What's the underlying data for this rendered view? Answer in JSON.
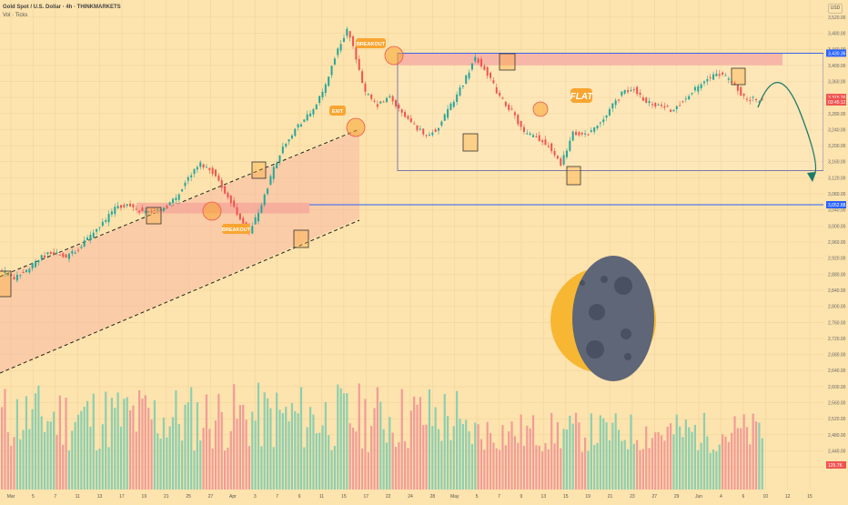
{
  "header": {
    "symbol": "Gold Spot / U.S. Dollar · 4h · THINKMARKETS",
    "volume": "Vol · Ticks"
  },
  "currency": "USD",
  "colors": {
    "background": "#fde3ad",
    "up": "#26a69a",
    "down": "#ef5350",
    "vol_up": "#8ccfb0",
    "vol_down": "#f19c98",
    "channel_fill": "#f7b9a2",
    "zone_fill": "#f4a49a",
    "level_line": "#2962ff",
    "marker": "#f8a531",
    "curve": "#1b7a6a"
  },
  "annotations": {
    "breakout_1": "BREAKOUT",
    "breakout_2": "BREAKOUT",
    "exit": "EXIT",
    "flat": "FLAT"
  },
  "chart_data": {
    "type": "candlestick",
    "y_axis_ticks": [
      "3,520.00",
      "3,480.00",
      "3,440.00",
      "3,400.00",
      "3,360.00",
      "3,320.00",
      "3,280.00",
      "3,240.00",
      "3,200.00",
      "3,160.00",
      "3,120.00",
      "3,080.00",
      "3,040.00",
      "3,000.00",
      "2,960.00",
      "2,920.00",
      "2,880.00",
      "2,840.00",
      "2,800.00",
      "2,760.00",
      "2,720.00",
      "2,680.00",
      "2,640.00",
      "2,600.00",
      "2,560.00",
      "2,520.00",
      "2,480.00",
      "2,440.00",
      "2,400.00"
    ],
    "price_labels": [
      {
        "text": "3,430.36",
        "price": 3430.36,
        "color": "#2962ff"
      },
      {
        "text": "3,315.26",
        "price": 3320,
        "color": "#ef5350"
      },
      {
        "text": "03:45:12",
        "price": 3309,
        "color": "#ef5350"
      },
      {
        "text": "3,052.88",
        "price": 3052.88,
        "color": "#2962ff"
      },
      {
        "text": "129.7K",
        "price": 2405,
        "color": "#ef5350"
      }
    ],
    "x_axis_ticks": [
      "Mar",
      "5",
      "7",
      "11",
      "13",
      "17",
      "19",
      "21",
      "25",
      "27",
      "Apr",
      "3",
      "7",
      "9",
      "11",
      "15",
      "17",
      "22",
      "24",
      "28",
      "May",
      "5",
      "7",
      "9",
      "13",
      "15",
      "19",
      "21",
      "23",
      "27",
      "29",
      "Jun",
      "4",
      "6",
      "10",
      "12",
      "15"
    ],
    "y_range": [
      2380,
      3540
    ],
    "resistance_zone": [
      3400,
      3430
    ],
    "support_zone": [
      3045,
      3058
    ],
    "support_level": 3052.88,
    "flat_range": [
      3138,
      3430
    ],
    "price_path": [
      [
        0,
        2890
      ],
      [
        5,
        2870
      ],
      [
        10,
        2895
      ],
      [
        14,
        2925
      ],
      [
        18,
        2935
      ],
      [
        22,
        2920
      ],
      [
        26,
        2945
      ],
      [
        30,
        2975
      ],
      [
        34,
        3005
      ],
      [
        38,
        3045
      ],
      [
        42,
        3052
      ],
      [
        46,
        3040
      ],
      [
        50,
        3035
      ],
      [
        54,
        3045
      ],
      [
        58,
        3070
      ],
      [
        62,
        3120
      ],
      [
        66,
        3155
      ],
      [
        70,
        3135
      ],
      [
        74,
        3085
      ],
      [
        78,
        3030
      ],
      [
        82,
        2985
      ],
      [
        86,
        3050
      ],
      [
        90,
        3145
      ],
      [
        94,
        3210
      ],
      [
        98,
        3250
      ],
      [
        102,
        3280
      ],
      [
        106,
        3330
      ],
      [
        110,
        3420
      ],
      [
        114,
        3490
      ],
      [
        117,
        3420
      ],
      [
        120,
        3330
      ],
      [
        124,
        3300
      ],
      [
        128,
        3320
      ],
      [
        132,
        3280
      ],
      [
        136,
        3250
      ],
      [
        140,
        3225
      ],
      [
        144,
        3245
      ],
      [
        148,
        3300
      ],
      [
        152,
        3355
      ],
      [
        156,
        3420
      ],
      [
        160,
        3380
      ],
      [
        164,
        3320
      ],
      [
        168,
        3285
      ],
      [
        172,
        3230
      ],
      [
        176,
        3220
      ],
      [
        180,
        3200
      ],
      [
        184,
        3155
      ],
      [
        188,
        3230
      ],
      [
        192,
        3225
      ],
      [
        196,
        3250
      ],
      [
        200,
        3290
      ],
      [
        204,
        3330
      ],
      [
        208,
        3340
      ],
      [
        212,
        3310
      ],
      [
        216,
        3300
      ],
      [
        220,
        3290
      ],
      [
        224,
        3310
      ],
      [
        228,
        3340
      ],
      [
        232,
        3365
      ],
      [
        236,
        3380
      ],
      [
        240,
        3360
      ],
      [
        244,
        3320
      ],
      [
        248,
        3315
      ]
    ]
  }
}
